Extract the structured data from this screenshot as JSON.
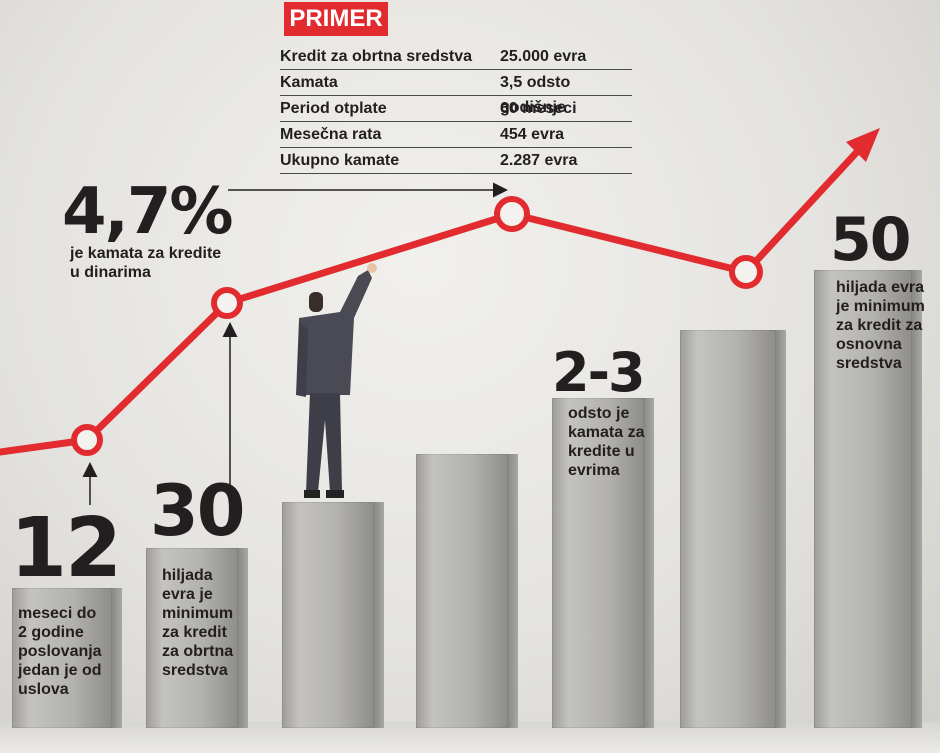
{
  "primer": {
    "badge": "PRIMER",
    "rows": [
      {
        "label": "Kredit za obrtna sredstva",
        "value": "25.000 evra"
      },
      {
        "label": "Kamata",
        "value": "3,5 odsto godišnje"
      },
      {
        "label": "Period otplate",
        "value": "60 meseci"
      },
      {
        "label": "Mesečna rata",
        "value": "454 evra"
      },
      {
        "label": "Ukupno kamate",
        "value": "2.287 evra"
      }
    ]
  },
  "stats": {
    "dinar_rate": {
      "value": "4,7%",
      "caption": "je kamata za kredite\nu dinarima"
    },
    "months": {
      "value": "12",
      "caption": "meseci do\n2 godine\nposlovanja\njedan je od\nuslova"
    },
    "working_capital": {
      "value": "30",
      "caption": "hiljada\nevra je\nminimum\nza kredit\nza obrtna\nsredstva"
    },
    "euro_rate": {
      "value": "2-3",
      "caption": "odsto je\nkamata za\nkredite u\nevrima"
    },
    "fixed_assets": {
      "value": "50",
      "caption": "hiljada evra\nje minimum\nza kredit za\nosnovna\nsredstva"
    }
  },
  "colors": {
    "accent": "#e22b2e",
    "text": "#231f20"
  }
}
